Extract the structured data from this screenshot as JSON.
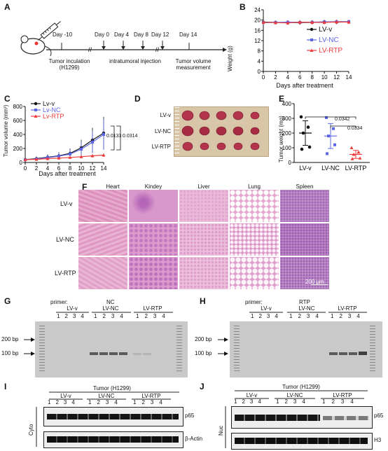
{
  "panels": {
    "A": "A",
    "B": "B",
    "C": "C",
    "D": "D",
    "E": "E",
    "F": "F",
    "G": "G",
    "H": "H",
    "I": "I",
    "J": "J"
  },
  "timeline": {
    "days": [
      "Day -10",
      "Day 0",
      "Day 4",
      "Day 8",
      "Day 12",
      "Day 14"
    ],
    "labels": [
      "Tumor inculation\n(H1299)",
      "intratumoral injection",
      "Tumor volume\nmeasurement"
    ]
  },
  "colors": {
    "lv_v": "#111111",
    "lv_nc": "#5a66e6",
    "lv_rtp": "#ee3b3b"
  },
  "chart_data": [
    {
      "id": "B",
      "type": "line",
      "xlabel": "Days after treatment",
      "ylabel": "Weight (g)",
      "xlim": [
        0,
        14
      ],
      "ylim": [
        0,
        24
      ],
      "xticks": [
        0,
        2,
        4,
        6,
        8,
        10,
        12,
        14
      ],
      "yticks": [
        0,
        4,
        8,
        12,
        16,
        20,
        24
      ],
      "legend_position": "right",
      "x": [
        0,
        2,
        4,
        6,
        8,
        10,
        12,
        14
      ],
      "series": [
        {
          "name": "LV-v",
          "values": [
            19.2,
            19.1,
            19.0,
            19.0,
            19.1,
            19.3,
            19.2,
            19.3
          ]
        },
        {
          "name": "LV-NC",
          "values": [
            19.0,
            19.1,
            19.2,
            19.1,
            19.2,
            19.3,
            19.4,
            19.4
          ]
        },
        {
          "name": "LV-RTP",
          "values": [
            19.1,
            19.0,
            18.9,
            19.2,
            19.1,
            19.1,
            19.3,
            19.2
          ]
        }
      ]
    },
    {
      "id": "C",
      "type": "line",
      "xlabel": "Days after treatment",
      "ylabel": "Tumor volume (mm³)",
      "xlim": [
        0,
        14
      ],
      "ylim": [
        0,
        800
      ],
      "xticks": [
        0,
        2,
        4,
        6,
        8,
        10,
        12,
        14
      ],
      "yticks": [
        0,
        200,
        400,
        600,
        800
      ],
      "legend_position": "top-left",
      "x": [
        0,
        2,
        4,
        6,
        8,
        10,
        12,
        14
      ],
      "series": [
        {
          "name": "Lv-v",
          "values": [
            40,
            55,
            75,
            95,
            130,
            210,
            320,
            420
          ]
        },
        {
          "name": "Lv-NC",
          "values": [
            38,
            50,
            70,
            90,
            120,
            190,
            290,
            400
          ]
        },
        {
          "name": "Lv-RTP",
          "values": [
            40,
            45,
            55,
            62,
            72,
            82,
            95,
            105
          ]
        }
      ],
      "annotations": [
        "0.0133",
        "0.0314"
      ]
    },
    {
      "id": "E",
      "type": "scatter",
      "ylabel": "Tumor weight (mg)",
      "categories": [
        "LV-v",
        "LV-NC",
        "LV-RTP"
      ],
      "ylim": [
        0,
        400
      ],
      "yticks": [
        0,
        100,
        200,
        300,
        400
      ],
      "means": [
        200,
        180,
        55
      ],
      "points": [
        [
          310,
          240,
          200,
          105,
          90
        ],
        [
          305,
          230,
          180,
          120,
          60
        ],
        [
          100,
          70,
          55,
          30,
          25
        ]
      ],
      "annotations": [
        "0.0342",
        "0.0334"
      ]
    }
  ],
  "photo_labels": [
    "LV-v",
    "LV-NC",
    "LV-RTP"
  ],
  "histology": {
    "columns": [
      "Heart",
      "Kindey",
      "Liver",
      "Lung",
      "Spleen"
    ],
    "rows": [
      "LV-v",
      "LV-NC",
      "LV-RTP"
    ],
    "scale": "200 μm"
  },
  "gel_G": {
    "primer_label": "primer:",
    "primer": "NC",
    "groups": [
      "LV-v",
      "LV-NC",
      "LV-RTP"
    ],
    "lanes": [
      "1",
      "2",
      "3",
      "4"
    ],
    "markers": [
      "200 bp",
      "100 bp"
    ]
  },
  "gel_H": {
    "primer_label": "primer:",
    "primer": "RTP",
    "groups": [
      "LV-v",
      "LV-NC",
      "LV-RTP"
    ],
    "lanes": [
      "1",
      "2",
      "3",
      "4"
    ],
    "markers": [
      "200 bp",
      "100 bp"
    ]
  },
  "blot_I": {
    "title": "Tumor (H1299)",
    "groups": [
      "LV-v",
      "LV-NC",
      "LV-RTP"
    ],
    "lanes": [
      "1",
      "2",
      "3",
      "4"
    ],
    "fraction": "Cyto",
    "proteins": [
      "p65",
      "β-Actin"
    ]
  },
  "blot_J": {
    "title": "Tumor (H1299)",
    "groups": [
      "LV-v",
      "LV-NC",
      "LV-RTP"
    ],
    "lanes": [
      "1",
      "2",
      "3",
      "4"
    ],
    "fraction": "Nuc",
    "proteins": [
      "p65",
      "H3"
    ]
  }
}
